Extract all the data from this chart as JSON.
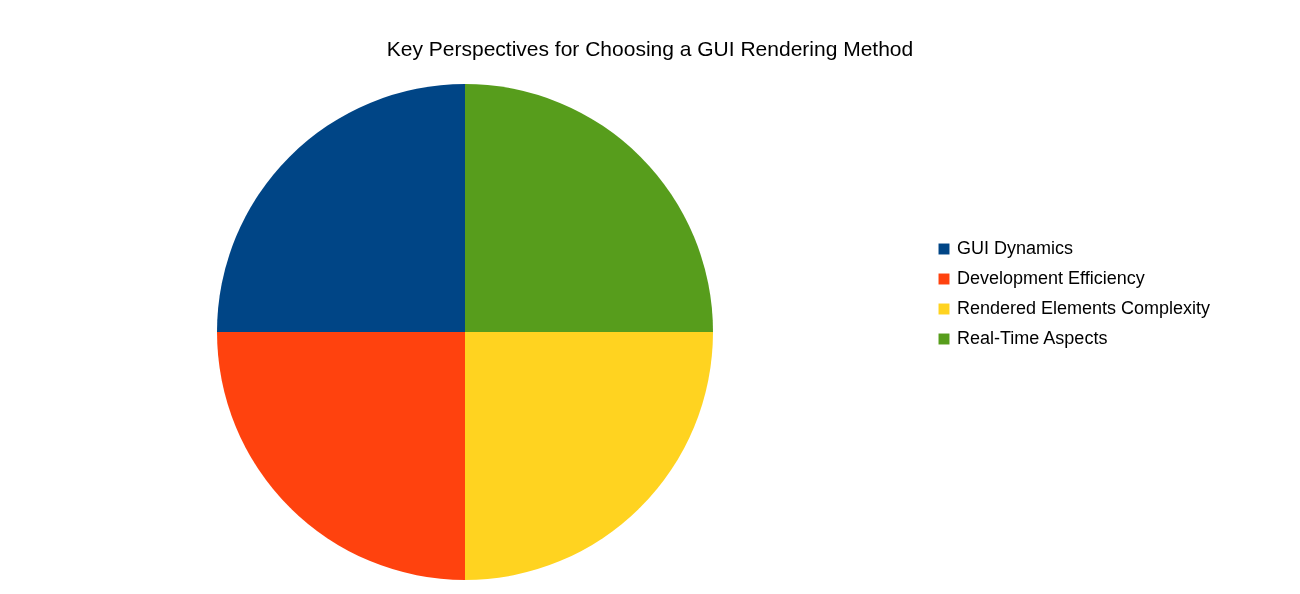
{
  "chart_data": {
    "type": "pie",
    "title": "Key Perspectives for Choosing a GUI Rendering Method",
    "categories": [
      "GUI Dynamics",
      "Development Efficiency",
      "Rendered Elements Complexity",
      "Real-Time Aspects"
    ],
    "values": [
      25,
      25,
      25,
      25
    ],
    "colors": [
      "#004586",
      "#ff420e",
      "#ffd320",
      "#579d1c"
    ],
    "legend": "right"
  }
}
